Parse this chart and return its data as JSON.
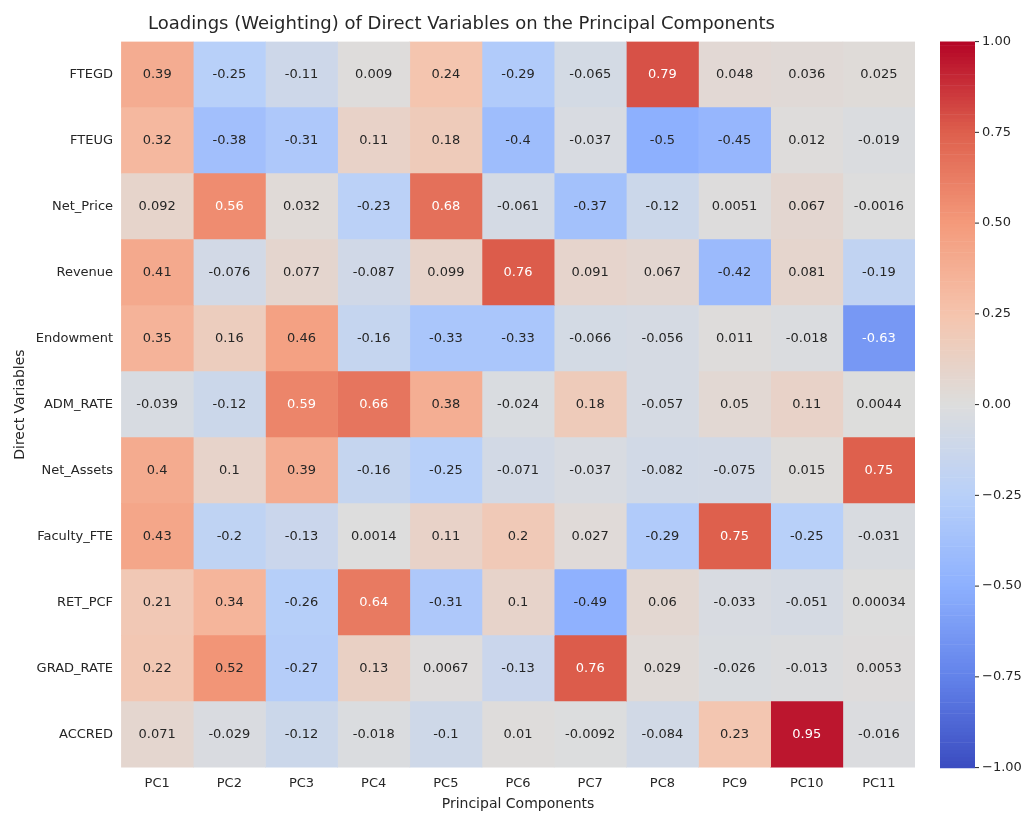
{
  "chart_data": {
    "type": "heatmap",
    "title": "Loadings (Weighting) of Direct Variables on the Principal Components",
    "xlabel": "Principal Components",
    "ylabel": "Direct Variables",
    "categories": [
      "PC1",
      "PC2",
      "PC3",
      "PC4",
      "PC5",
      "PC6",
      "PC7",
      "PC8",
      "PC9",
      "PC10",
      "PC11"
    ],
    "y_categories": [
      "FTEGD",
      "FTEUG",
      "Net_Price",
      "Revenue",
      "Endowment",
      "ADM_RATE",
      "Net_Assets",
      "Faculty_FTE",
      "RET_PCF",
      "GRAD_RATE",
      "ACCRED"
    ],
    "cells": [
      [
        0.39,
        -0.25,
        -0.11,
        0.009,
        0.24,
        -0.29,
        -0.065,
        0.79,
        0.048,
        0.036,
        0.025
      ],
      [
        0.32,
        -0.38,
        -0.31,
        0.11,
        0.18,
        -0.4,
        -0.037,
        -0.5,
        -0.45,
        0.012,
        -0.019
      ],
      [
        0.092,
        0.56,
        0.032,
        -0.23,
        0.68,
        -0.061,
        -0.37,
        -0.12,
        0.0051,
        0.067,
        -0.0016
      ],
      [
        0.41,
        -0.076,
        0.077,
        -0.087,
        0.099,
        0.76,
        0.091,
        0.067,
        -0.42,
        0.081,
        -0.19
      ],
      [
        0.35,
        0.16,
        0.46,
        -0.16,
        -0.33,
        -0.33,
        -0.066,
        -0.056,
        0.011,
        -0.018,
        -0.63
      ],
      [
        -0.039,
        -0.12,
        0.59,
        0.66,
        0.38,
        -0.024,
        0.18,
        -0.057,
        0.05,
        0.11,
        0.0044
      ],
      [
        0.4,
        0.1,
        0.39,
        -0.16,
        -0.25,
        -0.071,
        -0.037,
        -0.082,
        -0.075,
        0.015,
        0.75
      ],
      [
        0.43,
        -0.2,
        -0.13,
        0.0014,
        0.11,
        0.2,
        0.027,
        -0.29,
        0.75,
        -0.25,
        -0.031
      ],
      [
        0.21,
        0.34,
        -0.26,
        0.64,
        -0.31,
        0.1,
        -0.49,
        0.06,
        -0.033,
        -0.051,
        0.00034
      ],
      [
        0.22,
        0.52,
        -0.27,
        0.13,
        0.0067,
        -0.13,
        0.76,
        0.029,
        -0.026,
        -0.013,
        0.0053
      ],
      [
        0.071,
        -0.029,
        -0.12,
        -0.018,
        -0.1,
        0.01,
        -0.0092,
        -0.084,
        0.23,
        0.95,
        -0.016
      ]
    ],
    "clim": [
      -1,
      1
    ],
    "cticks": [
      {
        "value": 1,
        "label": "1.00"
      },
      {
        "value": 0.75,
        "label": "0.75"
      },
      {
        "value": 0.5,
        "label": "0.50"
      },
      {
        "value": 0.25,
        "label": "0.25"
      },
      {
        "value": 0,
        "label": "0.00"
      },
      {
        "value": -0.25,
        "label": "−0.25"
      },
      {
        "value": -0.5,
        "label": "−0.50"
      },
      {
        "value": -0.75,
        "label": "−0.75"
      },
      {
        "value": -1,
        "label": "−1.00"
      }
    ],
    "data_labels": true
  }
}
